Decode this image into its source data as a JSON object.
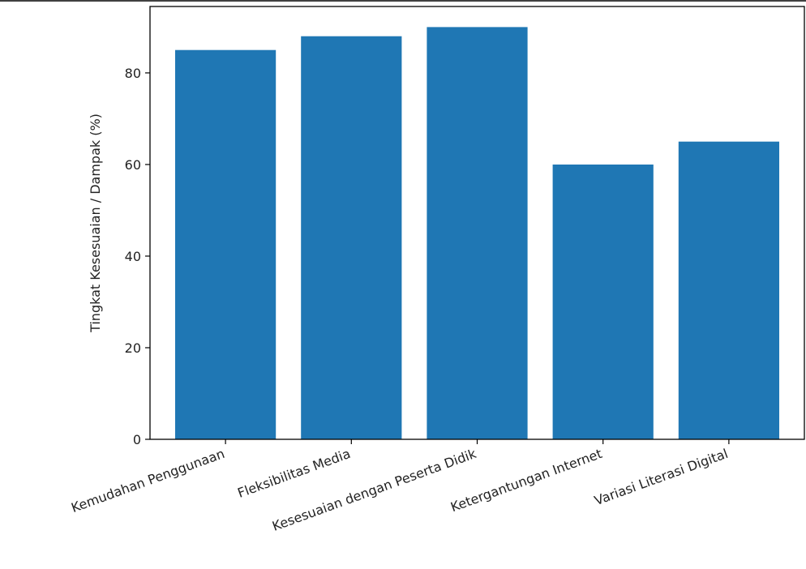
{
  "chart_data": {
    "type": "bar",
    "title": "",
    "xlabel": "",
    "ylabel": "Tingkat Kesesuaian / Dampak (%)",
    "categories": [
      "Kemudahan Penggunaan",
      "Fleksibilitas Media",
      "Kesesuaian dengan Peserta Didik",
      "Ketergantungan Internet",
      "Variasi Literasi Digital"
    ],
    "values": [
      85,
      88,
      90,
      60,
      65
    ],
    "ylim": [
      0,
      94.5
    ],
    "yticks": [
      0,
      20,
      40,
      60,
      80
    ],
    "ytick_labels": [
      "0",
      "20",
      "40",
      "60",
      "80"
    ],
    "xtick_rotation_deg": -20,
    "grid": false,
    "legend": "none",
    "colors": {
      "bar": "#1f77b4",
      "axis": "#000000",
      "text": "#222222",
      "background": "#ffffff"
    }
  }
}
